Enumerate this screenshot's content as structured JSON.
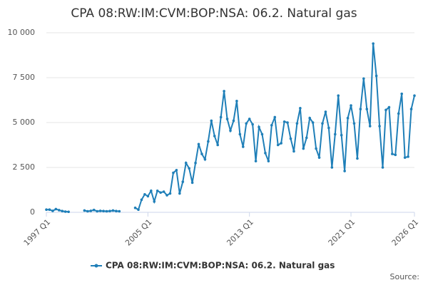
{
  "chart_data": {
    "type": "line",
    "title": "CPA 08:RW:IM:CVM:BOP:NSA: 06.2. Natural gas",
    "source": "Source:",
    "categories": [
      "1997 Q1",
      null,
      null,
      null,
      null,
      null,
      null,
      null,
      null,
      null,
      null,
      null,
      null,
      null,
      null,
      null,
      null,
      null,
      null,
      null,
      null,
      null,
      null,
      null,
      null,
      null,
      null,
      null,
      null,
      null,
      null,
      null,
      "2005 Q1",
      null,
      null,
      null,
      null,
      null,
      null,
      null,
      null,
      null,
      null,
      null,
      null,
      null,
      null,
      null,
      null,
      null,
      null,
      null,
      null,
      null,
      null,
      null,
      null,
      null,
      null,
      null,
      null,
      null,
      null,
      null,
      "2013 Q1",
      null,
      null,
      null,
      null,
      null,
      null,
      null,
      null,
      null,
      null,
      null,
      null,
      null,
      null,
      null,
      null,
      null,
      null,
      null,
      null,
      null,
      null,
      null,
      null,
      null,
      null,
      null,
      null,
      null,
      null,
      null,
      "2021 Q1",
      null,
      null,
      null,
      null,
      null,
      null,
      null,
      null,
      null,
      null,
      null,
      null,
      null,
      null,
      null,
      null,
      null,
      null,
      null,
      "2026 Q1"
    ],
    "series": [
      {
        "name": "CPA 08:RW:IM:CVM:BOP:NSA: 06.2. Natural gas",
        "color": "#1f7fb8",
        "values": [
          150,
          150,
          80,
          180,
          120,
          70,
          40,
          30,
          null,
          null,
          null,
          null,
          100,
          60,
          80,
          130,
          60,
          80,
          70,
          60,
          70,
          100,
          70,
          60,
          null,
          null,
          null,
          null,
          250,
          150,
          700,
          1000,
          900,
          1200,
          600,
          1200,
          1100,
          1150,
          950,
          1050,
          2200,
          2350,
          1050,
          1700,
          2750,
          2450,
          1650,
          2750,
          3800,
          3250,
          2950,
          3950,
          5100,
          4250,
          3750,
          5300,
          6750,
          5200,
          4550,
          5100,
          6200,
          4350,
          3650,
          4950,
          5200,
          4900,
          2850,
          4750,
          4350,
          3300,
          2850,
          4850,
          5300,
          3750,
          3850,
          5050,
          5000,
          4100,
          3400,
          4950,
          5800,
          3550,
          4150,
          5250,
          5000,
          3550,
          3050,
          4950,
          5600,
          4700,
          2500,
          4350,
          6500,
          4300,
          2300,
          5250,
          5950,
          4950,
          3000,
          5750,
          7450,
          5750,
          4800,
          9400,
          7600,
          4800,
          2500,
          5700,
          5850,
          3250,
          3200,
          5500,
          6600,
          3050,
          3100,
          5750,
          6500
        ]
      }
    ],
    "ylim": [
      0,
      10000
    ],
    "yticks": [
      0,
      {
        "value": 2500,
        "label": "2 500"
      },
      {
        "value": 5000,
        "label": "5 000"
      },
      {
        "value": 7500,
        "label": "7 500"
      },
      {
        "value": 10000,
        "label": "10 000"
      }
    ],
    "grid": true
  }
}
